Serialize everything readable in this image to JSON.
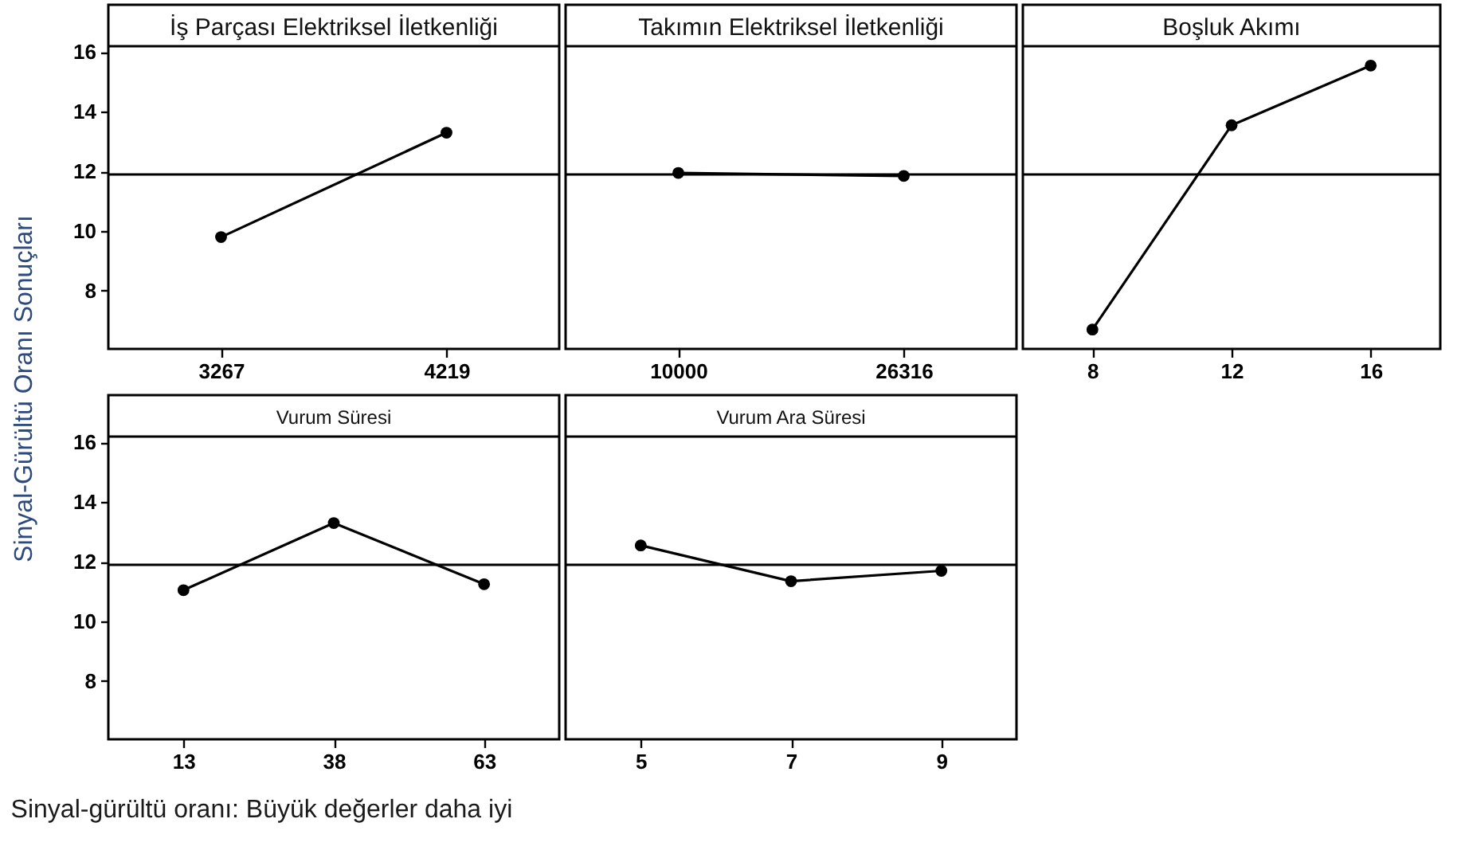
{
  "chart_data": [
    {
      "type": "line",
      "title": "İş Parçası Elektriksel İletkenliği",
      "ylabel": "Sinyal-Gürültü Oranı Sonuçları",
      "categories": [
        "3267",
        "4219"
      ],
      "values": [
        9.8,
        13.3
      ],
      "color": "#000000",
      "marker": "circle",
      "ylim": [
        6.05,
        16.2
      ],
      "yticks": [
        8,
        10,
        12,
        14,
        16
      ],
      "ref_lines": [
        {
          "axis": "y",
          "value": 11.9
        }
      ]
    },
    {
      "type": "line",
      "title": "Takımın Elektriksel İletkenliği",
      "categories": [
        "10000",
        "26316"
      ],
      "values": [
        11.95,
        11.85
      ],
      "color": "#000000",
      "marker": "circle",
      "ylim": [
        6.05,
        16.2
      ],
      "yticks": [
        8,
        10,
        12,
        14,
        16
      ],
      "ref_lines": [
        {
          "axis": "y",
          "value": 11.9
        }
      ],
      "tick_labels": "x"
    },
    {
      "type": "line",
      "title": "Boşluk Akımı",
      "categories": [
        "8",
        "12",
        "16"
      ],
      "values": [
        6.7,
        13.55,
        15.55
      ],
      "color": "#000000",
      "marker": "circle",
      "ylim": [
        6.05,
        16.2
      ],
      "yticks": [
        8,
        10,
        12,
        14,
        16
      ],
      "ref_lines": [
        {
          "axis": "y",
          "value": 11.9
        }
      ],
      "tick_labels": "x"
    },
    {
      "type": "line",
      "title": "Vurum Süresi",
      "categories": [
        "13",
        "38",
        "63"
      ],
      "values": [
        11.05,
        13.3,
        11.25
      ],
      "color": "#000000",
      "marker": "circle",
      "ylim": [
        6.05,
        16.2
      ],
      "yticks": [
        8,
        10,
        12,
        14,
        16
      ],
      "ref_lines": [
        {
          "axis": "y",
          "value": 11.9
        }
      ],
      "annotations": [
        "Sinyal-gürültü oranı: Büyük değerler daha iyi"
      ]
    },
    {
      "type": "line",
      "title": "Vurum Ara Süresi",
      "categories": [
        "5",
        "7",
        "9"
      ],
      "values": [
        12.55,
        11.35,
        11.7
      ],
      "color": "#000000",
      "marker": "circle",
      "ylim": [
        6.05,
        16.2
      ],
      "yticks": [
        8,
        10,
        12,
        14,
        16
      ],
      "ref_lines": [
        {
          "axis": "y",
          "value": 11.9
        }
      ],
      "tick_labels": "x"
    }
  ]
}
